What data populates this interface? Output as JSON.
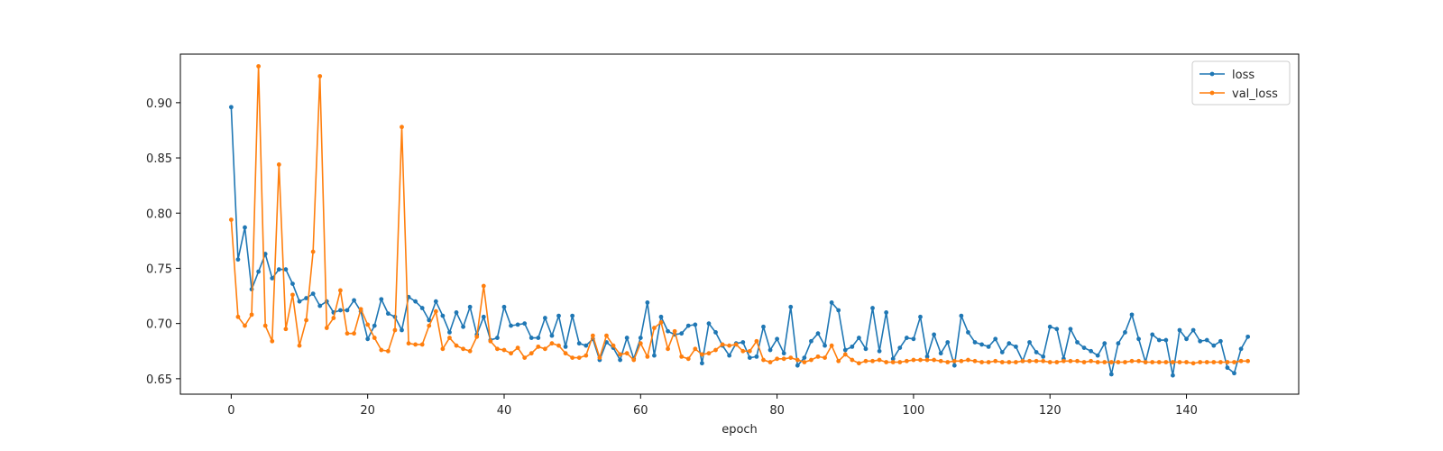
{
  "chart_data": {
    "type": "line",
    "title": "",
    "xlabel": "epoch",
    "ylabel": "",
    "xlim": [
      -7.45,
      156.45
    ],
    "ylim": [
      0.636,
      0.944
    ],
    "xticks": [
      0,
      20,
      40,
      60,
      80,
      100,
      120,
      140
    ],
    "yticks": [
      0.65,
      0.7,
      0.75,
      0.8,
      0.85,
      0.9
    ],
    "ytick_labels": [
      "0.65",
      "0.70",
      "0.75",
      "0.80",
      "0.85",
      "0.90"
    ],
    "grid": false,
    "legend_position": "top-right",
    "series": [
      {
        "name": "loss",
        "color": "#1f77b4",
        "values": [
          0.896,
          0.758,
          0.787,
          0.731,
          0.747,
          0.763,
          0.741,
          0.749,
          0.749,
          0.736,
          0.72,
          0.723,
          0.727,
          0.716,
          0.72,
          0.71,
          0.712,
          0.712,
          0.721,
          0.711,
          0.686,
          0.698,
          0.722,
          0.709,
          0.706,
          0.694,
          0.724,
          0.72,
          0.714,
          0.703,
          0.72,
          0.707,
          0.692,
          0.71,
          0.697,
          0.715,
          0.69,
          0.706,
          0.685,
          0.687,
          0.715,
          0.698,
          0.699,
          0.7,
          0.687,
          0.687,
          0.705,
          0.689,
          0.707,
          0.679,
          0.707,
          0.682,
          0.68,
          0.686,
          0.667,
          0.683,
          0.678,
          0.667,
          0.687,
          0.668,
          0.687,
          0.719,
          0.671,
          0.706,
          0.693,
          0.69,
          0.691,
          0.698,
          0.699,
          0.664,
          0.7,
          0.692,
          0.68,
          0.671,
          0.682,
          0.683,
          0.669,
          0.67,
          0.697,
          0.676,
          0.686,
          0.673,
          0.715,
          0.662,
          0.669,
          0.684,
          0.691,
          0.68,
          0.719,
          0.712,
          0.676,
          0.679,
          0.687,
          0.677,
          0.714,
          0.675,
          0.71,
          0.668,
          0.678,
          0.687,
          0.686,
          0.706,
          0.67,
          0.69,
          0.673,
          0.683,
          0.662,
          0.707,
          0.692,
          0.683,
          0.681,
          0.679,
          0.686,
          0.674,
          0.682,
          0.679,
          0.666,
          0.683,
          0.674,
          0.67,
          0.697,
          0.695,
          0.668,
          0.695,
          0.683,
          0.678,
          0.675,
          0.671,
          0.682,
          0.654,
          0.682,
          0.692,
          0.708,
          0.686,
          0.665,
          0.69,
          0.685,
          0.685,
          0.653,
          0.694,
          0.686,
          0.694,
          0.684,
          0.685,
          0.68,
          0.684,
          0.66,
          0.655,
          0.677,
          0.688
        ]
      },
      {
        "name": "val_loss",
        "color": "#ff7f0e",
        "values": [
          0.794,
          0.706,
          0.698,
          0.708,
          0.933,
          0.698,
          0.684,
          0.844,
          0.695,
          0.726,
          0.68,
          0.703,
          0.765,
          0.924,
          0.696,
          0.705,
          0.73,
          0.691,
          0.691,
          0.713,
          0.699,
          0.687,
          0.676,
          0.675,
          0.694,
          0.878,
          0.682,
          0.681,
          0.681,
          0.698,
          0.711,
          0.677,
          0.687,
          0.68,
          0.677,
          0.675,
          0.688,
          0.734,
          0.684,
          0.677,
          0.676,
          0.673,
          0.678,
          0.669,
          0.673,
          0.679,
          0.677,
          0.682,
          0.68,
          0.673,
          0.669,
          0.669,
          0.671,
          0.689,
          0.669,
          0.689,
          0.68,
          0.672,
          0.673,
          0.667,
          0.682,
          0.67,
          0.696,
          0.701,
          0.677,
          0.693,
          0.67,
          0.668,
          0.677,
          0.672,
          0.673,
          0.676,
          0.681,
          0.68,
          0.681,
          0.675,
          0.675,
          0.684,
          0.667,
          0.665,
          0.668,
          0.668,
          0.669,
          0.667,
          0.665,
          0.667,
          0.67,
          0.669,
          0.68,
          0.666,
          0.672,
          0.667,
          0.664,
          0.666,
          0.666,
          0.667,
          0.665,
          0.665,
          0.665,
          0.666,
          0.667,
          0.667,
          0.667,
          0.667,
          0.666,
          0.665,
          0.666,
          0.666,
          0.667,
          0.666,
          0.665,
          0.665,
          0.666,
          0.665,
          0.665,
          0.665,
          0.666,
          0.666,
          0.666,
          0.666,
          0.665,
          0.665,
          0.666,
          0.666,
          0.666,
          0.665,
          0.666,
          0.665,
          0.665,
          0.665,
          0.665,
          0.665,
          0.666,
          0.666,
          0.665,
          0.665,
          0.665,
          0.665,
          0.665,
          0.665,
          0.665,
          0.664,
          0.665,
          0.665,
          0.665,
          0.665,
          0.665,
          0.665,
          0.666,
          0.666
        ]
      }
    ]
  }
}
